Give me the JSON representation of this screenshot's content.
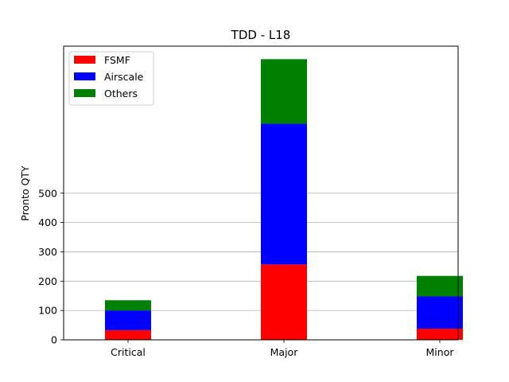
{
  "chart_data": {
    "type": "bar",
    "stacked": true,
    "title": "TDD - L18",
    "xlabel": "",
    "ylabel": "Pronto QTY",
    "categories": [
      "Critical",
      "Major",
      "Minor"
    ],
    "series": [
      {
        "name": "FSMF",
        "color": "#ff0000",
        "values": [
          33,
          257,
          38
        ]
      },
      {
        "name": "Airscale",
        "color": "#0000ff",
        "values": [
          67,
          480,
          110
        ]
      },
      {
        "name": "Others",
        "color": "#008000",
        "values": [
          35,
          220,
          70
        ]
      }
    ],
    "yticks": [
      0,
      100,
      200,
      300,
      400,
      500
    ],
    "ylim": [
      0,
      1000
    ],
    "grid": "y",
    "legend_position": "top-left"
  }
}
